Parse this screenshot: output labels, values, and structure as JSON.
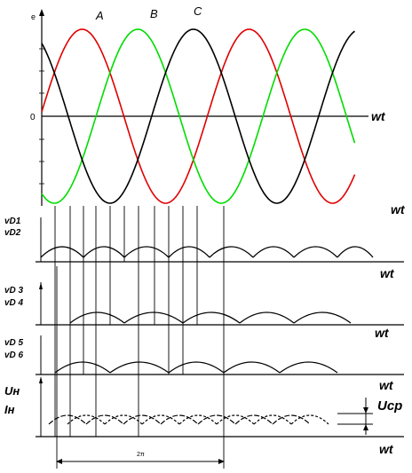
{
  "labels": {
    "e_axis": "e",
    "zero": "0",
    "phase_a": "A",
    "phase_b": "B",
    "phase_c": "C",
    "wt_top": "wt",
    "wt_top2": "wt",
    "wt_1": "wt",
    "wt_2": "wt",
    "wt_3": "wt",
    "wt_4": "wt",
    "vd1": "vD1",
    "vd2": "vD2",
    "vd3": "vD 3",
    "vd4": "vD 4",
    "vd5": "vD 5",
    "vd6": "vD 6",
    "un": "Uн",
    "in": "Iн",
    "ucp": "Ucp",
    "two_pi": "2π"
  },
  "colors": {
    "phase_a": "#e00000",
    "phase_b": "#00dd00",
    "phase_c": "#000000",
    "axes": "#000000"
  }
}
